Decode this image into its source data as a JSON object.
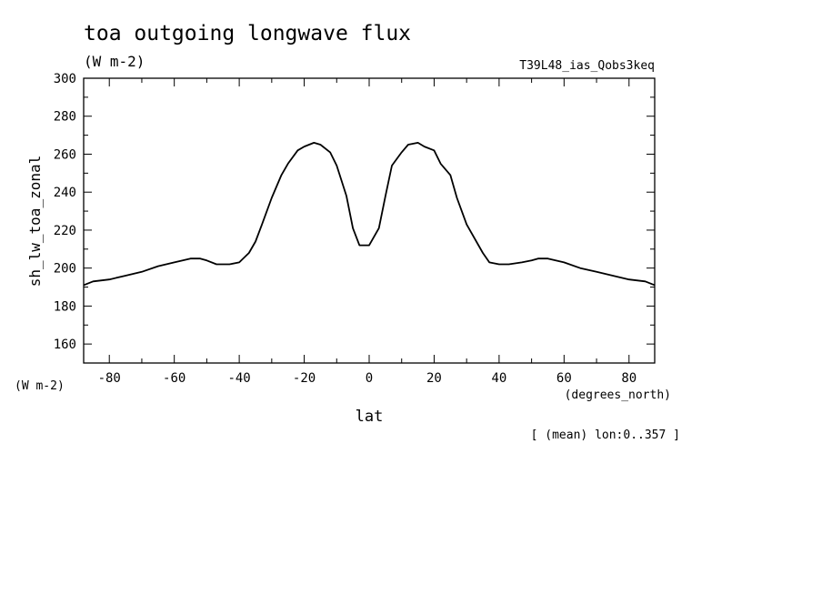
{
  "chart_data": {
    "type": "line",
    "title": "toa outgoing longwave flux",
    "units": "(W m-2)",
    "run_label": "T39L48_ias_Qobs3keq",
    "xlabel": "lat",
    "x_units": "(degrees_north)",
    "ylabel": "sh_lw_toa_zonal",
    "y_units": "(W m-2)",
    "footnote": "[ (mean) lon:0..357 ]",
    "xlim": [
      -87.9,
      87.9
    ],
    "ylim": [
      150,
      300
    ],
    "x_ticks": [
      -80,
      -60,
      -40,
      -20,
      0,
      20,
      40,
      60,
      80
    ],
    "x_tick_labels": [
      "-80",
      "-60",
      "-40",
      "-20",
      "0",
      "20",
      "40",
      "60",
      "80"
    ],
    "y_ticks": [
      160,
      180,
      200,
      220,
      240,
      260,
      280,
      300
    ],
    "y_tick_labels": [
      "160",
      "180",
      "200",
      "220",
      "240",
      "260",
      "280",
      "300"
    ],
    "grid": false,
    "series": [
      {
        "x": [
          -87.9,
          -85,
          -80,
          -75,
          -70,
          -65,
          -60,
          -55,
          -52,
          -50,
          -47,
          -43,
          -40,
          -37,
          -35,
          -33,
          -30,
          -27,
          -25,
          -22,
          -20,
          -17,
          -15,
          -12,
          -10,
          -7,
          -5,
          -3,
          0,
          3,
          5,
          7,
          10,
          12,
          15,
          17,
          20,
          22,
          25,
          27,
          30,
          35,
          37,
          40,
          43,
          47,
          50,
          52,
          55,
          60,
          65,
          70,
          75,
          80,
          85,
          87.9
        ],
        "y": [
          191,
          193,
          194,
          196,
          198,
          201,
          203,
          205,
          205,
          204,
          202,
          202,
          203,
          208,
          214,
          223,
          237,
          249,
          255,
          262,
          264,
          266,
          265,
          261,
          254,
          238,
          221,
          212,
          212,
          221,
          238,
          254,
          261,
          265,
          266,
          264,
          262,
          255,
          249,
          237,
          223,
          208,
          203,
          202,
          202,
          203,
          204,
          205,
          205,
          203,
          200,
          198,
          196,
          194,
          193,
          191
        ]
      }
    ]
  }
}
